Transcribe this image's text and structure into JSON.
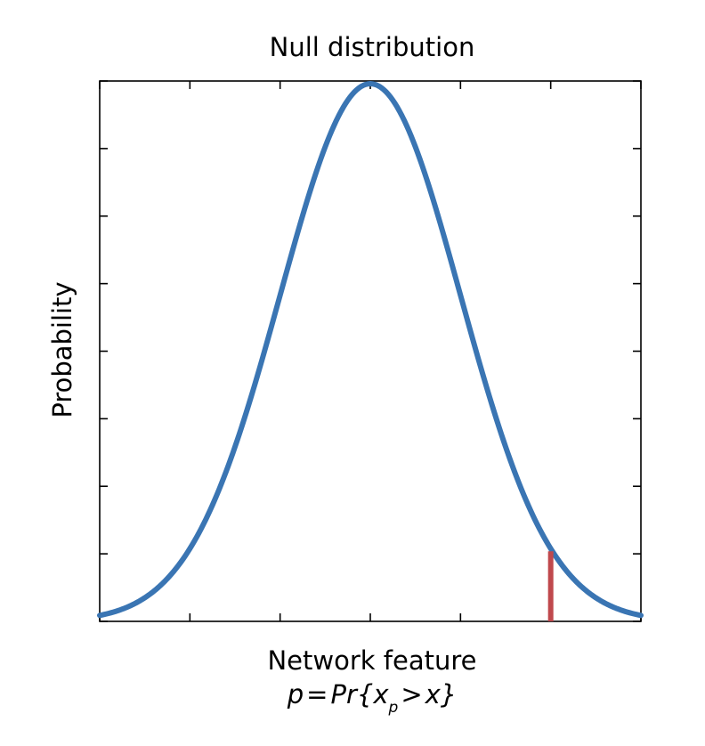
{
  "chart_data": {
    "type": "line",
    "title": "Null distribution",
    "xlabel": "Network feature",
    "ylabel": "Probability",
    "annotation": {
      "lhs": "p",
      "eq": "=",
      "fn": "Pr{",
      "var": "x",
      "sub": "p",
      "gt": ">",
      "rhs": "x}"
    },
    "xlim": [
      -3,
      3
    ],
    "ylim": [
      0,
      1
    ],
    "x_ticks": [
      -3,
      -2,
      -1,
      0,
      1,
      2,
      3
    ],
    "y_ticks": [
      0,
      0.125,
      0.25,
      0.375,
      0.5,
      0.625,
      0.75,
      0.875,
      1
    ],
    "tick_labels_shown": false,
    "grid": false,
    "series": [
      {
        "distribution": "normal",
        "mean": 0,
        "sd": 1,
        "color": "#3a75b3",
        "x_range": [
          -3,
          3
        ]
      }
    ],
    "marker": {
      "x": 2,
      "color": "#c0494d"
    }
  }
}
